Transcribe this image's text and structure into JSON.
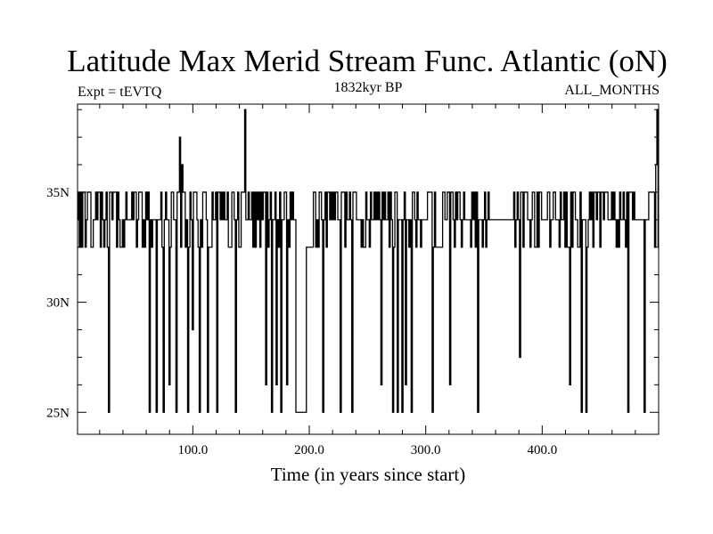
{
  "chart_data": {
    "type": "line",
    "title": "Latitude Max Merid Stream Func. Atlantic (oN)",
    "subtitle_left": "Expt = tEVTQ",
    "subtitle_center": "1832kyr BP",
    "subtitle_right": "ALL_MONTHS",
    "xlabel": "Time (in years since start)",
    "ylabel": "",
    "xlim": [
      1,
      500
    ],
    "ylim": [
      24,
      39
    ],
    "x_major_ticks": [
      100,
      200,
      300,
      400
    ],
    "x_tick_labels": [
      "100.0",
      "200.0",
      "300.0",
      "400.0"
    ],
    "y_major_ticks": [
      25,
      30,
      35
    ],
    "y_tick_labels": [
      "25N",
      "30N",
      "35N"
    ],
    "levels": [
      25,
      26.25,
      27.5,
      28.75,
      30,
      31.25,
      32.5,
      33.75,
      35,
      36.25,
      37.5,
      38.75
    ],
    "base_level": 33.75,
    "high_level": 35,
    "low_level": 32.5,
    "dips": [
      {
        "x": 28,
        "v": 25
      },
      {
        "x": 35,
        "v": 32.5
      },
      {
        "x": 63,
        "v": 25
      },
      {
        "x": 69,
        "v": 25
      },
      {
        "x": 75,
        "v": 25
      },
      {
        "x": 80,
        "v": 26.25
      },
      {
        "x": 86,
        "v": 25
      },
      {
        "x": 96,
        "v": 25
      },
      {
        "x": 100,
        "v": 28.75
      },
      {
        "x": 106,
        "v": 25
      },
      {
        "x": 113,
        "v": 25
      },
      {
        "x": 121,
        "v": 25
      },
      {
        "x": 137,
        "v": 25
      },
      {
        "x": 158,
        "v": 32.5
      },
      {
        "x": 163,
        "v": 26.25
      },
      {
        "x": 168,
        "v": 25
      },
      {
        "x": 172,
        "v": 26.25
      },
      {
        "x": 176,
        "v": 25
      },
      {
        "x": 181,
        "v": 26.25
      },
      {
        "x": 212,
        "v": 25
      },
      {
        "x": 227,
        "v": 25
      },
      {
        "x": 237,
        "v": 25
      },
      {
        "x": 262,
        "v": 26.25
      },
      {
        "x": 272,
        "v": 25
      },
      {
        "x": 276,
        "v": 25
      },
      {
        "x": 280,
        "v": 25
      },
      {
        "x": 283,
        "v": 26.25
      },
      {
        "x": 288,
        "v": 25
      },
      {
        "x": 306,
        "v": 25
      },
      {
        "x": 321,
        "v": 26.25
      },
      {
        "x": 345,
        "v": 25
      },
      {
        "x": 381,
        "v": 27.5
      },
      {
        "x": 424,
        "v": 26.25
      },
      {
        "x": 434,
        "v": 25
      },
      {
        "x": 438,
        "v": 25
      },
      {
        "x": 474,
        "v": 25
      },
      {
        "x": 488,
        "v": 25
      }
    ],
    "flat_segments": [
      {
        "x0": 189,
        "x1": 198,
        "v": 25
      },
      {
        "x0": 198,
        "x1": 203,
        "v": 32.5
      },
      {
        "x0": 309,
        "x1": 314,
        "v": 32.5
      },
      {
        "x0": 355,
        "x1": 375,
        "v": 33.75
      },
      {
        "x0": 480,
        "x1": 487,
        "v": 33.75
      }
    ],
    "spikes": [
      {
        "x": 89,
        "v": 37.5
      },
      {
        "x": 91,
        "v": 36.25
      },
      {
        "x": 145,
        "v": 38.75
      },
      {
        "x": 499,
        "v": 38.75
      },
      {
        "x": 498,
        "v": 36.25
      }
    ]
  }
}
